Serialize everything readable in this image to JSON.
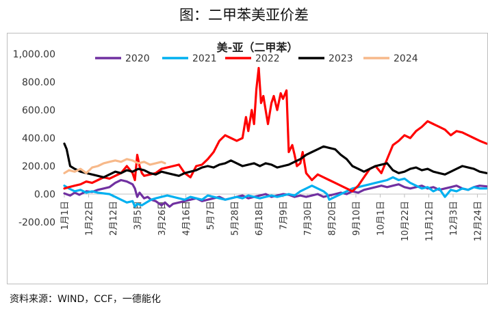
{
  "figure_title": "图：二甲苯美亚价差",
  "source": "资料来源：WIND，CCF，一德能化",
  "chart_data": {
    "type": "line",
    "title": "美-亚（二甲苯）",
    "xlabel": "",
    "ylabel": "",
    "ylim": [
      -200,
      1000
    ],
    "yticks": [
      -200,
      0,
      200,
      400,
      600,
      800,
      1000
    ],
    "ytick_labels": [
      "-200.00",
      "0.00",
      "200.00",
      "400.00",
      "600.00",
      "800.00",
      "1,000.00"
    ],
    "x_day_range": [
      1,
      366
    ],
    "xtick_labels": [
      "1月1日",
      "1月22日",
      "2月12日",
      "3月5日",
      "3月26日",
      "4月16日",
      "5月7日",
      "5月28日",
      "6月18日",
      "7月9日",
      "7月30日",
      "8月20日",
      "9月10日",
      "10月1日",
      "10月22日",
      "11月12日",
      "12月3日",
      "12月24日"
    ],
    "xtick_days": [
      1,
      22,
      43,
      64,
      85,
      106,
      127,
      148,
      169,
      190,
      211,
      232,
      253,
      274,
      295,
      316,
      337,
      358
    ],
    "grid": false,
    "legend_position": "top",
    "series": [
      {
        "name": "2020",
        "color": "#7030a0",
        "x": [
          1,
          6,
          10,
          14,
          20,
          25,
          30,
          35,
          40,
          45,
          50,
          55,
          60,
          62,
          64,
          66,
          68,
          70,
          73,
          76,
          80,
          85,
          88,
          92,
          95,
          100,
          105,
          110,
          115,
          120,
          125,
          130,
          135,
          140,
          145,
          150,
          155,
          160,
          165,
          170,
          175,
          180,
          185,
          190,
          195,
          200,
          205,
          210,
          215,
          220,
          225,
          230,
          235,
          240,
          245,
          250,
          255,
          260,
          265,
          270,
          275,
          280,
          285,
          290,
          295,
          300,
          305,
          310,
          315,
          320,
          325,
          330,
          335,
          340,
          345,
          350,
          355,
          360,
          366
        ],
        "y": [
          5,
          -10,
          10,
          -5,
          20,
          15,
          30,
          40,
          50,
          80,
          100,
          90,
          70,
          40,
          -20,
          10,
          -10,
          -30,
          -20,
          -40,
          -50,
          -80,
          -60,
          -90,
          -70,
          -60,
          -50,
          -40,
          -30,
          -50,
          -40,
          -30,
          -20,
          -40,
          -30,
          -20,
          -10,
          -30,
          -20,
          -10,
          0,
          -20,
          -10,
          0,
          -5,
          -20,
          -10,
          -20,
          -10,
          0,
          -20,
          -10,
          0,
          10,
          0,
          20,
          10,
          30,
          40,
          50,
          60,
          50,
          60,
          70,
          50,
          40,
          50,
          60,
          40,
          50,
          30,
          40,
          50,
          60,
          40,
          30,
          50,
          60,
          55
        ]
      },
      {
        "name": "2021",
        "color": "#00b0f0",
        "x": [
          1,
          5,
          10,
          15,
          20,
          25,
          30,
          35,
          40,
          45,
          50,
          55,
          60,
          62,
          64,
          68,
          72,
          76,
          80,
          85,
          90,
          95,
          100,
          105,
          110,
          115,
          120,
          125,
          130,
          135,
          140,
          145,
          150,
          155,
          160,
          165,
          170,
          175,
          180,
          185,
          190,
          195,
          200,
          205,
          210,
          215,
          220,
          225,
          228,
          230,
          235,
          240,
          245,
          250,
          255,
          260,
          265,
          270,
          275,
          280,
          285,
          290,
          295,
          300,
          305,
          310,
          315,
          320,
          325,
          330,
          335,
          340,
          345,
          350,
          355,
          360,
          366
        ],
        "y": [
          60,
          40,
          20,
          30,
          10,
          20,
          10,
          5,
          0,
          -20,
          -40,
          -60,
          -50,
          -90,
          -70,
          -80,
          -60,
          -40,
          -30,
          -20,
          -10,
          -20,
          -30,
          -40,
          -20,
          -30,
          -40,
          -10,
          -20,
          -30,
          -40,
          -30,
          -20,
          -30,
          -10,
          -20,
          -30,
          -20,
          -10,
          -20,
          -10,
          0,
          -10,
          20,
          40,
          60,
          40,
          20,
          0,
          -40,
          -20,
          0,
          20,
          40,
          50,
          60,
          70,
          80,
          90,
          100,
          120,
          100,
          110,
          80,
          60,
          40,
          50,
          20,
          40,
          -20,
          30,
          20,
          40,
          30,
          50,
          40,
          40
        ]
      },
      {
        "name": "2022",
        "color": "#ff0000",
        "x": [
          1,
          5,
          10,
          15,
          20,
          25,
          30,
          35,
          40,
          45,
          50,
          55,
          60,
          62,
          64,
          66,
          68,
          70,
          75,
          80,
          85,
          90,
          95,
          100,
          105,
          110,
          115,
          120,
          125,
          130,
          135,
          140,
          145,
          150,
          155,
          158,
          160,
          163,
          165,
          167,
          169,
          171,
          173,
          175,
          177,
          180,
          182,
          185,
          188,
          190,
          193,
          195,
          198,
          200,
          202,
          205,
          207,
          210,
          213,
          215,
          220,
          225,
          230,
          235,
          240,
          245,
          250,
          255,
          260,
          265,
          270,
          275,
          280,
          285,
          290,
          295,
          300,
          305,
          310,
          315,
          320,
          325,
          330,
          335,
          340,
          345,
          350,
          355,
          360,
          366
        ],
        "y": [
          40,
          50,
          60,
          70,
          90,
          80,
          100,
          120,
          110,
          130,
          150,
          200,
          150,
          100,
          280,
          200,
          150,
          130,
          140,
          150,
          180,
          190,
          200,
          210,
          150,
          120,
          200,
          210,
          250,
          300,
          380,
          420,
          400,
          380,
          400,
          550,
          450,
          600,
          500,
          750,
          900,
          650,
          700,
          600,
          500,
          650,
          700,
          600,
          720,
          680,
          740,
          300,
          350,
          280,
          200,
          220,
          300,
          150,
          120,
          100,
          140,
          120,
          100,
          80,
          60,
          40,
          20,
          60,
          120,
          180,
          200,
          150,
          250,
          350,
          380,
          420,
          400,
          450,
          480,
          520,
          500,
          480,
          460,
          420,
          450,
          440,
          420,
          400,
          380,
          360
        ]
      },
      {
        "name": "2023",
        "color": "#000000",
        "x": [
          1,
          3,
          6,
          10,
          15,
          20,
          25,
          30,
          35,
          40,
          45,
          50,
          55,
          60,
          65,
          70,
          75,
          80,
          85,
          90,
          95,
          100,
          105,
          110,
          115,
          120,
          125,
          130,
          135,
          140,
          145,
          150,
          155,
          160,
          165,
          170,
          175,
          180,
          185,
          190,
          195,
          200,
          205,
          210,
          215,
          220,
          225,
          230,
          235,
          240,
          245,
          250,
          255,
          260,
          265,
          270,
          275,
          280,
          285,
          290,
          295,
          300,
          305,
          310,
          315,
          320,
          325,
          330,
          335,
          340,
          345,
          350,
          355,
          360,
          366
        ],
        "y": [
          360,
          320,
          200,
          180,
          160,
          150,
          140,
          130,
          120,
          140,
          160,
          150,
          170,
          160,
          180,
          170,
          150,
          140,
          160,
          150,
          140,
          130,
          150,
          160,
          170,
          190,
          200,
          190,
          210,
          220,
          240,
          220,
          200,
          210,
          220,
          200,
          220,
          210,
          190,
          200,
          210,
          230,
          250,
          280,
          300,
          320,
          340,
          330,
          320,
          280,
          250,
          200,
          180,
          160,
          180,
          200,
          210,
          220,
          170,
          150,
          160,
          180,
          190,
          170,
          180,
          160,
          150,
          140,
          160,
          180,
          200,
          190,
          180,
          160,
          150
        ]
      },
      {
        "name": "2024",
        "color": "#f7b98a",
        "x": [
          1,
          5,
          10,
          15,
          20,
          25,
          30,
          35,
          40,
          45,
          50,
          55,
          60,
          65,
          70,
          75,
          80,
          85,
          88
        ],
        "y": [
          150,
          170,
          160,
          180,
          150,
          190,
          200,
          220,
          230,
          240,
          230,
          250,
          240,
          220,
          230,
          210,
          220,
          230,
          220
        ]
      }
    ]
  }
}
